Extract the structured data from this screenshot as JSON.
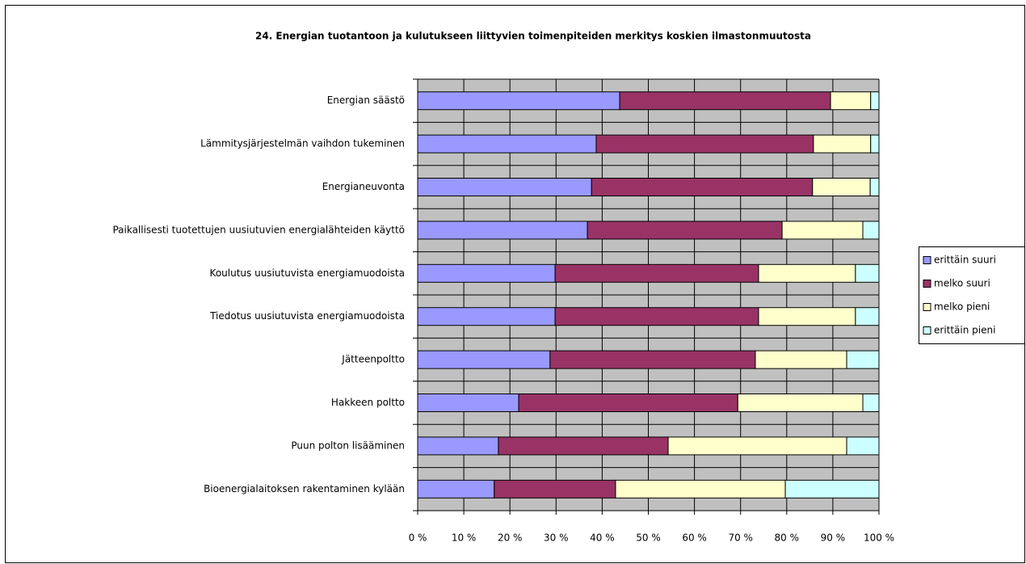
{
  "chart_data": {
    "type": "stacked_barh",
    "title": "24. Energian tuotantoon ja kulutukseen liittyvien toimenpiteiden merkitys koskien ilmastonmuutosta",
    "categories": [
      "Energian säästö",
      "Lämmitysjärjestelmän vaihdon tukeminen",
      "Energianeuvonta",
      "Paikallisesti tuotettujen uusiutuvien energialähteiden käyttö",
      "Koulutus uusiutuvista energiamuodoista",
      "Tiedotus uusiutuvista energiamuodoista",
      "Jätteenpoltto",
      "Hakkeen poltto",
      "Puun polton lisääminen",
      "Bioenergialaitoksen rakentaminen kylään"
    ],
    "series": [
      {
        "name": "erittäin suuri",
        "color": "#9999ff",
        "values": [
          43.8,
          38.7,
          37.7,
          36.8,
          29.8,
          29.8,
          28.7,
          21.9,
          17.5,
          16.6
        ]
      },
      {
        "name": "melko suuri",
        "color": "#993366",
        "values": [
          45.7,
          47.1,
          47.9,
          42.2,
          44.1,
          44.1,
          44.5,
          47.5,
          36.8,
          26.3
        ]
      },
      {
        "name": "melko pieni",
        "color": "#ffffcc",
        "values": [
          8.7,
          12.4,
          12.5,
          17.5,
          21.0,
          21.0,
          19.8,
          27.1,
          38.7,
          36.8
        ]
      },
      {
        "name": "erittäin pieni",
        "color": "#ccffff",
        "values": [
          1.8,
          1.8,
          1.9,
          3.5,
          5.1,
          5.1,
          7.0,
          3.5,
          7.0,
          20.3
        ]
      }
    ],
    "xlim": [
      0,
      100
    ],
    "xticks": [
      {
        "value": 0,
        "label": "0 %"
      },
      {
        "value": 10,
        "label": "10 %"
      },
      {
        "value": 20,
        "label": "20 %"
      },
      {
        "value": 30,
        "label": "30 %"
      },
      {
        "value": 40,
        "label": "40 %"
      },
      {
        "value": 50,
        "label": "50 %"
      },
      {
        "value": 60,
        "label": "60 %"
      },
      {
        "value": 70,
        "label": "70 %"
      },
      {
        "value": 80,
        "label": "80 %"
      },
      {
        "value": 90,
        "label": "90 %"
      },
      {
        "value": 100,
        "label": "100 %"
      }
    ],
    "grid": true,
    "legend": "right"
  }
}
